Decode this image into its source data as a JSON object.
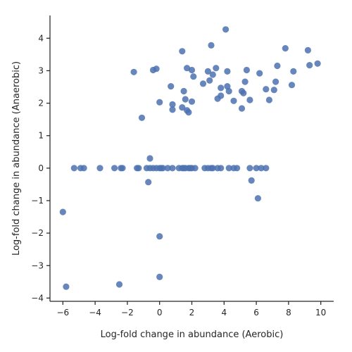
{
  "chart_data": {
    "type": "scatter",
    "xlabel": "Log-fold change in abundance (Aerobic)",
    "ylabel": "Log-fold change in abundance (Anaerobic)",
    "xlim": [
      -6.8,
      10.8
    ],
    "ylim": [
      -4.1,
      4.7
    ],
    "xticks": [
      -6,
      -4,
      -2,
      0,
      2,
      4,
      6,
      8,
      10
    ],
    "yticks": [
      -4,
      -3,
      -2,
      -1,
      0,
      1,
      2,
      3,
      4
    ],
    "grid": false,
    "color": "#4c72b0",
    "points": [
      {
        "x": 4.1,
        "y": 4.27
      },
      {
        "x": 3.2,
        "y": 3.78
      },
      {
        "x": 7.8,
        "y": 3.69
      },
      {
        "x": 9.2,
        "y": 3.63
      },
      {
        "x": 1.4,
        "y": 3.6
      },
      {
        "x": 9.8,
        "y": 3.22
      },
      {
        "x": 9.3,
        "y": 3.17
      },
      {
        "x": 7.3,
        "y": 3.15
      },
      {
        "x": 1.7,
        "y": 3.08
      },
      {
        "x": 3.5,
        "y": 3.08
      },
      {
        "x": -0.2,
        "y": 3.06
      },
      {
        "x": -0.4,
        "y": 3.02
      },
      {
        "x": 2.0,
        "y": 3.02
      },
      {
        "x": 5.4,
        "y": 3.02
      },
      {
        "x": -1.6,
        "y": 2.96
      },
      {
        "x": 3.0,
        "y": 2.98
      },
      {
        "x": 4.2,
        "y": 2.98
      },
      {
        "x": 8.3,
        "y": 2.98
      },
      {
        "x": 6.2,
        "y": 2.92
      },
      {
        "x": 3.3,
        "y": 2.88
      },
      {
        "x": 2.1,
        "y": 2.82
      },
      {
        "x": 3.1,
        "y": 2.7
      },
      {
        "x": 5.3,
        "y": 2.66
      },
      {
        "x": 7.2,
        "y": 2.66
      },
      {
        "x": 2.7,
        "y": 2.6
      },
      {
        "x": 8.2,
        "y": 2.56
      },
      {
        "x": 0.7,
        "y": 2.52
      },
      {
        "x": 3.8,
        "y": 2.47
      },
      {
        "x": 4.2,
        "y": 2.52
      },
      {
        "x": 6.6,
        "y": 2.43
      },
      {
        "x": 7.1,
        "y": 2.41
      },
      {
        "x": 1.5,
        "y": 2.37
      },
      {
        "x": 4.3,
        "y": 2.37
      },
      {
        "x": 5.1,
        "y": 2.37
      },
      {
        "x": 5.2,
        "y": 2.31
      },
      {
        "x": 3.8,
        "y": 2.23
      },
      {
        "x": 3.6,
        "y": 2.14
      },
      {
        "x": 1.6,
        "y": 2.12
      },
      {
        "x": 5.6,
        "y": 2.1
      },
      {
        "x": 6.8,
        "y": 2.1
      },
      {
        "x": 4.6,
        "y": 2.07
      },
      {
        "x": 2.0,
        "y": 2.05
      },
      {
        "x": 0.0,
        "y": 2.03
      },
      {
        "x": 0.8,
        "y": 1.96
      },
      {
        "x": 1.4,
        "y": 1.87
      },
      {
        "x": 5.1,
        "y": 1.84
      },
      {
        "x": 0.8,
        "y": 1.8
      },
      {
        "x": 1.7,
        "y": 1.78
      },
      {
        "x": 1.8,
        "y": 1.72
      },
      {
        "x": -1.1,
        "y": 1.55
      },
      {
        "x": -0.6,
        "y": 0.3
      },
      {
        "x": -5.3,
        "y": 0.0
      },
      {
        "x": -4.9,
        "y": 0.0
      },
      {
        "x": -4.7,
        "y": 0.0
      },
      {
        "x": -3.7,
        "y": 0.0
      },
      {
        "x": -2.8,
        "y": 0.0
      },
      {
        "x": -2.4,
        "y": 0.0
      },
      {
        "x": -2.3,
        "y": 0.0
      },
      {
        "x": -1.4,
        "y": 0.0
      },
      {
        "x": -1.3,
        "y": 0.0
      },
      {
        "x": -0.8,
        "y": 0.0
      },
      {
        "x": -0.6,
        "y": 0.0
      },
      {
        "x": -0.4,
        "y": 0.0
      },
      {
        "x": -0.2,
        "y": 0.0
      },
      {
        "x": 0.0,
        "y": 0.0
      },
      {
        "x": 0.1,
        "y": 0.0
      },
      {
        "x": 0.2,
        "y": 0.0
      },
      {
        "x": 0.5,
        "y": 0.0
      },
      {
        "x": 0.8,
        "y": 0.0
      },
      {
        "x": 1.2,
        "y": 0.0
      },
      {
        "x": 1.4,
        "y": 0.0
      },
      {
        "x": 1.5,
        "y": 0.0
      },
      {
        "x": 1.6,
        "y": 0.0
      },
      {
        "x": 1.8,
        "y": 0.0
      },
      {
        "x": 1.9,
        "y": 0.0
      },
      {
        "x": 2.0,
        "y": 0.0
      },
      {
        "x": 2.2,
        "y": 0.0
      },
      {
        "x": 2.8,
        "y": 0.0
      },
      {
        "x": 3.0,
        "y": 0.0
      },
      {
        "x": 3.2,
        "y": 0.0
      },
      {
        "x": 3.3,
        "y": 0.0
      },
      {
        "x": 3.6,
        "y": 0.0
      },
      {
        "x": 3.8,
        "y": 0.0
      },
      {
        "x": 4.3,
        "y": 0.0
      },
      {
        "x": 4.6,
        "y": 0.0
      },
      {
        "x": 4.8,
        "y": 0.0
      },
      {
        "x": 5.6,
        "y": 0.0
      },
      {
        "x": 6.0,
        "y": 0.0
      },
      {
        "x": 6.3,
        "y": 0.0
      },
      {
        "x": 6.6,
        "y": 0.0
      },
      {
        "x": -0.7,
        "y": -0.43
      },
      {
        "x": 5.7,
        "y": -0.38
      },
      {
        "x": 6.1,
        "y": -0.93
      },
      {
        "x": -6.0,
        "y": -1.35
      },
      {
        "x": 0.0,
        "y": -2.1
      },
      {
        "x": 0.0,
        "y": -3.35
      },
      {
        "x": -2.5,
        "y": -3.58
      },
      {
        "x": -5.8,
        "y": -3.65
      }
    ]
  }
}
